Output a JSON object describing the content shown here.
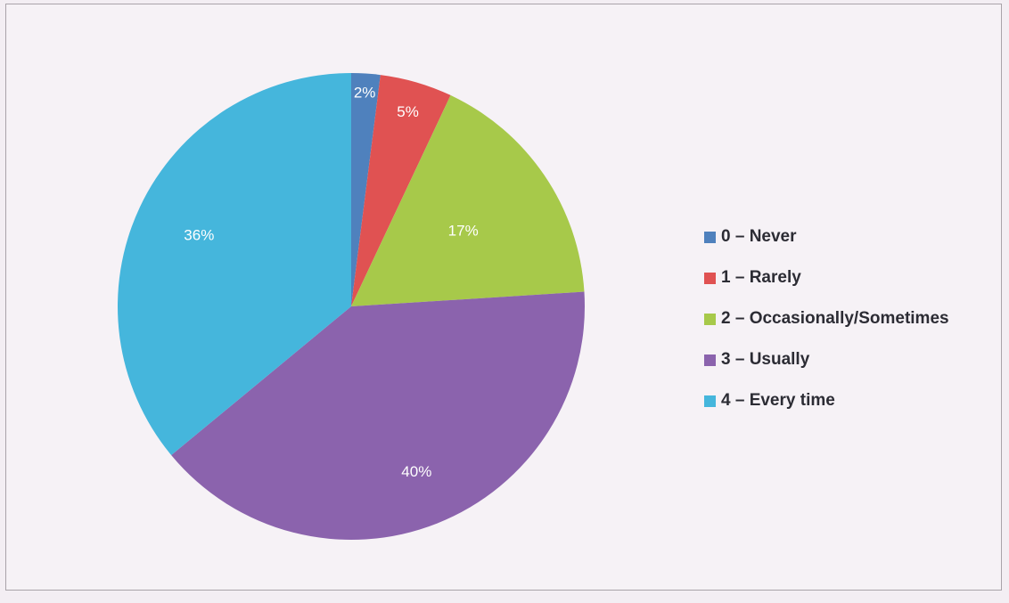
{
  "chart_data": {
    "type": "pie",
    "slices": [
      {
        "label": "0 – Never",
        "value": 2,
        "display": "2%",
        "color": "#4f81bd"
      },
      {
        "label": "1 – Rarely",
        "value": 5,
        "display": "5%",
        "color": "#e05252"
      },
      {
        "label": "2 – Occasionally/Sometimes",
        "value": 17,
        "display": "17%",
        "color": "#a7c94a"
      },
      {
        "label": "3 – Usually",
        "value": 40,
        "display": "40%",
        "color": "#8b63ad"
      },
      {
        "label": "4 – Every time",
        "value": 36,
        "display": "36%",
        "color": "#45b6dc"
      }
    ],
    "legend_position": "right",
    "title": ""
  }
}
